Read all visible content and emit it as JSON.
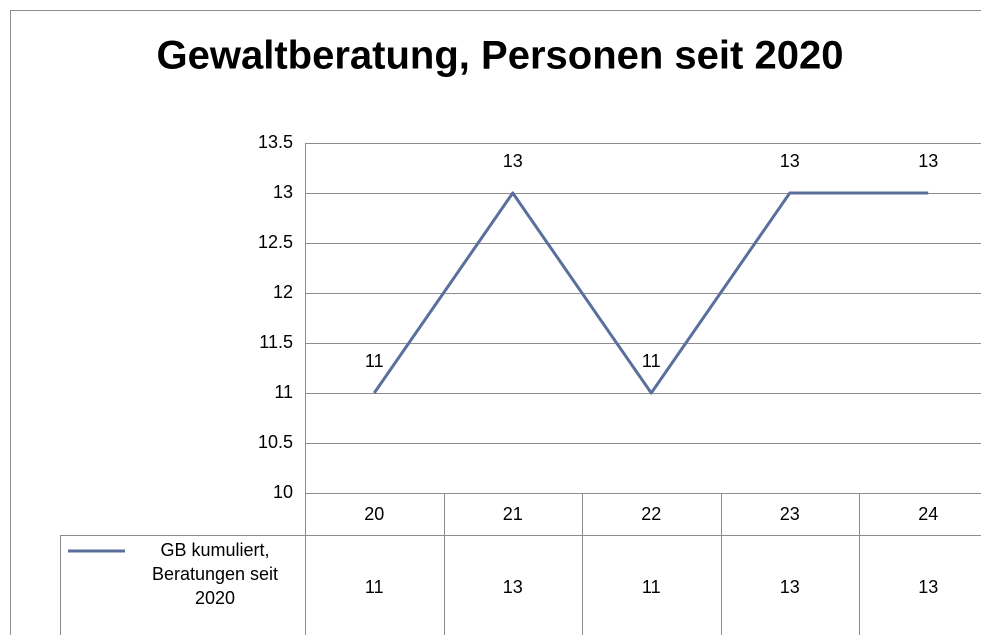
{
  "chart_data": {
    "type": "line",
    "title": "Gewaltberatung, Personen seit 2020",
    "categories": [
      "20",
      "21",
      "22",
      "23",
      "24"
    ],
    "series": [
      {
        "name": "GB kumuliert, Beratungen seit 2020",
        "color": "#5b6f9c",
        "values": [
          11,
          13,
          11,
          13,
          13
        ]
      }
    ],
    "ylim": [
      10,
      13.5
    ],
    "yticks": [
      10,
      10.5,
      11,
      11.5,
      12,
      12.5,
      13,
      13.5
    ],
    "grid": true,
    "data_labels": true,
    "data_table": true
  }
}
